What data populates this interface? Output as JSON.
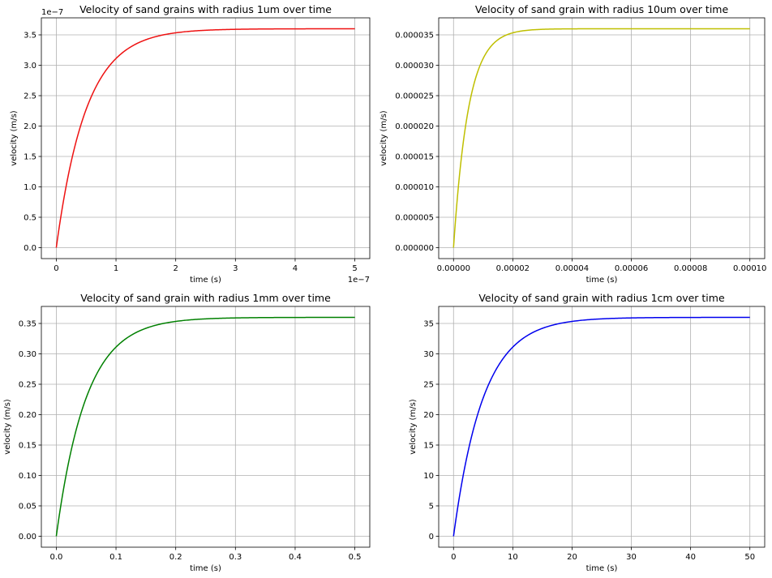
{
  "chart_data": [
    {
      "type": "line",
      "title": "Velocity of sand grains with radius 1um over time",
      "xlabel": "time (s)",
      "ylabel": "velocity (m/s)",
      "color": "#ee1111",
      "grid": true,
      "xlim": [
        -2.5e-08,
        5.25e-07
      ],
      "ylim": [
        -1.8e-08,
        3.78e-07
      ],
      "x_offset_label": "1e−7",
      "y_offset_label": "1e−7",
      "x_ticks": [
        0,
        1e-07,
        2e-07,
        3e-07,
        4e-07,
        5e-07
      ],
      "x_tick_labels": [
        "0",
        "1",
        "2",
        "3",
        "4",
        "5"
      ],
      "y_ticks": [
        0,
        5e-08,
        1e-07,
        1.5e-07,
        2e-07,
        2.5e-07,
        3e-07,
        3.5e-07
      ],
      "y_tick_labels": [
        "0.0",
        "0.5",
        "1.0",
        "1.5",
        "2.0",
        "2.5",
        "3.0",
        "3.5"
      ],
      "series": [
        {
          "x": [
            0,
            2e-08,
            4e-08,
            6e-08,
            8e-08,
            1e-07,
            1.2e-07,
            1.5e-07,
            2e-07,
            2.5e-07,
            3e-07,
            4e-07,
            5e-07
          ],
          "y": [
            0,
            1.18e-07,
            1.98e-07,
            2.52e-07,
            2.88e-07,
            3.11e-07,
            3.27e-07,
            3.42e-07,
            3.53e-07,
            3.58e-07,
            3.59e-07,
            3.6e-07,
            3.6e-07
          ]
        }
      ]
    },
    {
      "type": "line",
      "title": "Velocity of sand grain with radius 10um over time",
      "xlabel": "time (s)",
      "ylabel": "velocity (m/s)",
      "color": "#bfbf00",
      "grid": true,
      "xlim": [
        -5e-06,
        0.000105
      ],
      "ylim": [
        -1.8e-06,
        3.78e-05
      ],
      "x_ticks": [
        0,
        2e-05,
        4e-05,
        6e-05,
        8e-05,
        0.0001
      ],
      "x_tick_labels": [
        "0.00000",
        "0.00002",
        "0.00004",
        "0.00006",
        "0.00008",
        "0.00010"
      ],
      "y_ticks": [
        0,
        5e-06,
        1e-05,
        1.5e-05,
        2e-05,
        2.5e-05,
        3e-05,
        3.5e-05
      ],
      "y_tick_labels": [
        "0.000000",
        "0.000005",
        "0.000010",
        "0.000015",
        "0.000020",
        "0.000025",
        "0.000030",
        "0.000035"
      ],
      "series": [
        {
          "x": [
            0,
            2e-06,
            4e-06,
            6e-06,
            8e-06,
            1e-05,
            1.2e-05,
            1.5e-05,
            2e-05,
            2.5e-05,
            3e-05,
            4e-05,
            6e-05,
            0.0001
          ],
          "y": [
            0,
            1.18e-05,
            1.98e-05,
            2.52e-05,
            2.88e-05,
            3.11e-05,
            3.27e-05,
            3.42e-05,
            3.53e-05,
            3.58e-05,
            3.59e-05,
            3.6e-05,
            3.6e-05,
            3.6e-05
          ]
        }
      ]
    },
    {
      "type": "line",
      "title": "Velocity of sand grain with radius 1mm over time",
      "xlabel": "time (s)",
      "ylabel": "velocity (m/s)",
      "color": "#008000",
      "grid": true,
      "xlim": [
        -0.025,
        0.525
      ],
      "ylim": [
        -0.018,
        0.378
      ],
      "x_ticks": [
        0,
        0.1,
        0.2,
        0.3,
        0.4,
        0.5
      ],
      "x_tick_labels": [
        "0.0",
        "0.1",
        "0.2",
        "0.3",
        "0.4",
        "0.5"
      ],
      "y_ticks": [
        0,
        0.05,
        0.1,
        0.15,
        0.2,
        0.25,
        0.3,
        0.35
      ],
      "y_tick_labels": [
        "0.00",
        "0.05",
        "0.10",
        "0.15",
        "0.20",
        "0.25",
        "0.30",
        "0.35"
      ],
      "series": [
        {
          "x": [
            0,
            0.02,
            0.04,
            0.06,
            0.08,
            0.1,
            0.12,
            0.15,
            0.2,
            0.25,
            0.3,
            0.4,
            0.5
          ],
          "y": [
            0,
            0.118,
            0.198,
            0.252,
            0.288,
            0.311,
            0.327,
            0.342,
            0.353,
            0.358,
            0.359,
            0.36,
            0.36
          ]
        }
      ]
    },
    {
      "type": "line",
      "title": "Velocity of sand grain with radius 1cm over time",
      "xlabel": "time (s)",
      "ylabel": "velocity (m/s)",
      "color": "#0000ee",
      "grid": true,
      "xlim": [
        -2.5,
        52.5
      ],
      "ylim": [
        -1.8,
        37.8
      ],
      "x_ticks": [
        0,
        10,
        20,
        30,
        40,
        50
      ],
      "x_tick_labels": [
        "0",
        "10",
        "20",
        "30",
        "40",
        "50"
      ],
      "y_ticks": [
        0,
        5,
        10,
        15,
        20,
        25,
        30,
        35
      ],
      "y_tick_labels": [
        "0",
        "5",
        "10",
        "15",
        "20",
        "25",
        "30",
        "35"
      ],
      "series": [
        {
          "x": [
            0,
            2,
            4,
            6,
            8,
            10,
            12,
            15,
            20,
            25,
            30,
            40,
            50
          ],
          "y": [
            0,
            11.8,
            19.8,
            25.2,
            28.8,
            31.1,
            32.7,
            34.2,
            35.3,
            35.8,
            35.9,
            36.0,
            36.0
          ]
        }
      ]
    }
  ]
}
